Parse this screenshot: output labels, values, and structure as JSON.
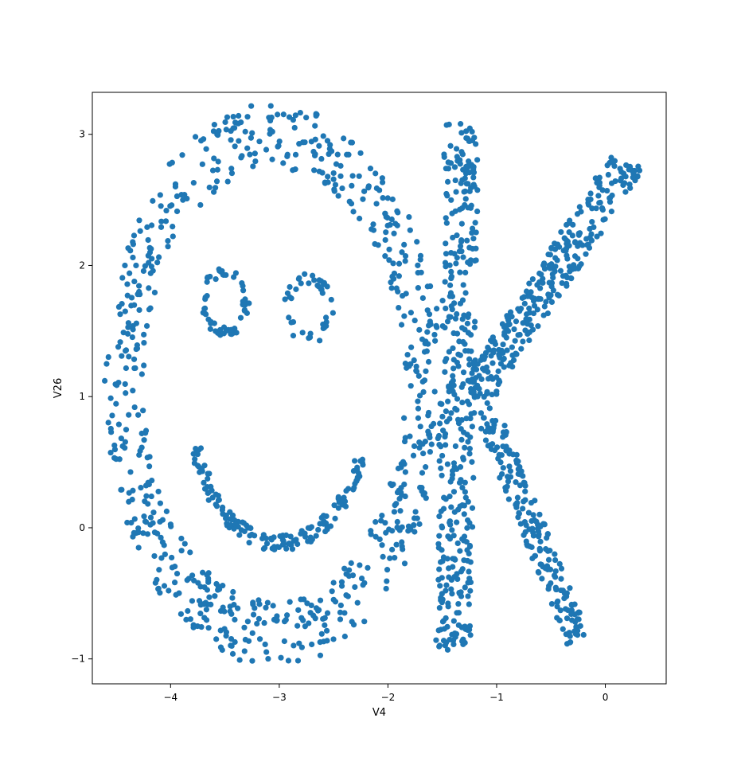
{
  "chart_data": {
    "type": "scatter",
    "xlabel": "V4",
    "ylabel": "V26",
    "xlim": [
      -4.72,
      0.56
    ],
    "ylim": [
      -1.19,
      3.32
    ],
    "xticks": [
      -4,
      -3,
      -2,
      -1,
      0
    ],
    "xtick_labels": [
      "−4",
      "−3",
      "−2",
      "−1",
      "0"
    ],
    "yticks": [
      -1,
      0,
      1,
      2,
      3
    ],
    "ytick_labels": [
      "−1",
      "0",
      "1",
      "2",
      "3"
    ],
    "grid": false,
    "marker_color": "#1f77b4",
    "shapes": {
      "ring": {
        "center": [
          -3.05,
          1.09
        ],
        "rx": 1.38,
        "ry": 1.9,
        "thickness": 0.26,
        "count": 700
      },
      "eye_left": {
        "center": [
          -3.5,
          1.72
        ],
        "radius": 0.2,
        "count": 55
      },
      "eye_right": {
        "center": [
          -2.73,
          1.67
        ],
        "radius": 0.2,
        "count": 40
      },
      "smile": {
        "center": [
          -3.0,
          0.9
        ],
        "radius": 1.02,
        "angle_range": [
          -165,
          -18
        ],
        "count": 150
      },
      "k_stem": {
        "from": [
          -1.32,
          3.08
        ],
        "to": [
          -1.4,
          -0.95
        ],
        "width": 0.32,
        "count": 380
      },
      "k_upper_arm": {
        "from": [
          -1.2,
          1.0
        ],
        "to": [
          0.22,
          2.82
        ],
        "width": 0.3,
        "count": 300
      },
      "k_lower_arm": {
        "from": [
          -1.1,
          0.9
        ],
        "to": [
          -0.26,
          -0.85
        ],
        "width": 0.22,
        "count": 200
      }
    }
  }
}
